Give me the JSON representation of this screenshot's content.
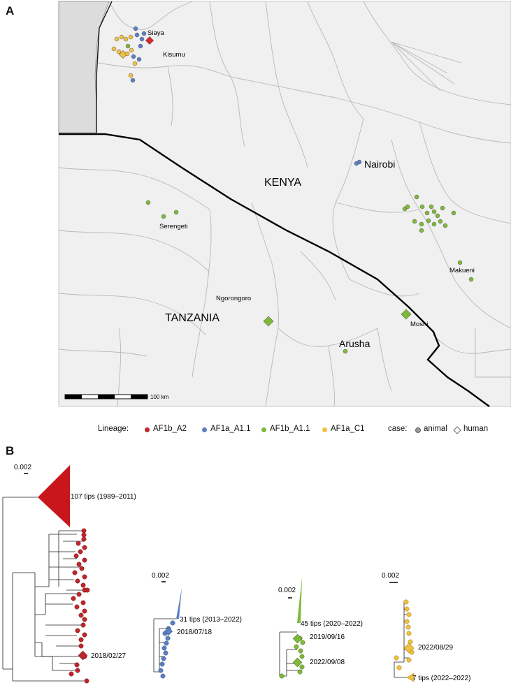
{
  "panel_labels": {
    "a": "A",
    "b": "B"
  },
  "map": {
    "countries": [
      "KENYA",
      "TANZANIA"
    ],
    "places": [
      "Siaya",
      "Kisumu",
      "Nairobi",
      "Serengeti",
      "Makueni",
      "Ngorongoro",
      "Moshi",
      "Arusha"
    ],
    "scale_label": "100 km"
  },
  "legend": {
    "lineage_title": "Lineage:",
    "lineages": [
      {
        "name": "AF1b_A2",
        "color": "#c0262b"
      },
      {
        "name": "AF1a_A1.1",
        "color": "#5b7fc4"
      },
      {
        "name": "AF1b_A1.1",
        "color": "#7fb93a"
      },
      {
        "name": "AF1a_C1",
        "color": "#f0c040"
      }
    ],
    "case_title": "case:",
    "cases": [
      "animal",
      "human"
    ]
  },
  "trees": [
    {
      "scale": "0.002",
      "clade_label": "107 tips (1989–2011)",
      "tip_label": "2018/02/27",
      "color": "#c0262b"
    },
    {
      "scale": "0.002",
      "clade_label": "31 tips (2013–2022)",
      "tip_label": "2018/07/18",
      "color": "#5b7fc4"
    },
    {
      "scale": "0.002",
      "clade_label": "45 tips (2020–2022)",
      "tip_labels": [
        "2019/09/16",
        "2022/09/08"
      ],
      "color": "#7fb93a"
    },
    {
      "scale": "0.002",
      "clade_label": "7 tips (2022–2022)",
      "tip_label": "2022/08/29",
      "color": "#f0c040"
    }
  ]
}
